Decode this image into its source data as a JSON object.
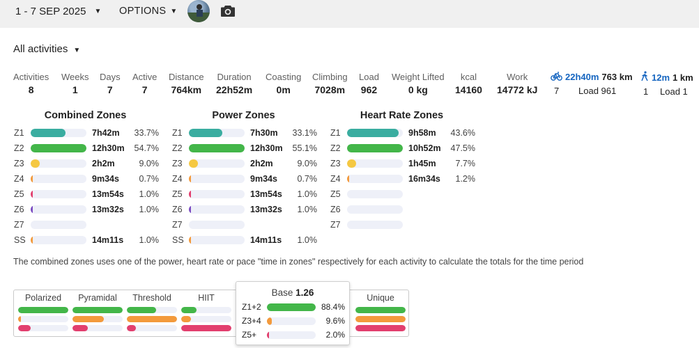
{
  "toolbar": {
    "date_range": "1 - 7 SEP 2025",
    "options_label": "OPTIONS",
    "dropdown_icon": "caret-down",
    "camera_icon": "camera"
  },
  "filter": {
    "label": "All activities"
  },
  "stats": [
    {
      "label": "Activities",
      "value": "8"
    },
    {
      "label": "Weeks",
      "value": "1"
    },
    {
      "label": "Days",
      "value": "7"
    },
    {
      "label": "Active",
      "value": "7"
    },
    {
      "label": "Distance",
      "value": "764km"
    },
    {
      "label": "Duration",
      "value": "22h52m"
    },
    {
      "label": "Coasting",
      "value": "0m"
    },
    {
      "label": "Climbing",
      "value": "7028m"
    },
    {
      "label": "Load",
      "value": "962"
    },
    {
      "label": "Weight Lifted",
      "value": "0 kg"
    },
    {
      "label": "kcal",
      "value": "14160"
    },
    {
      "label": "Work",
      "value": "14772 kJ"
    }
  ],
  "sports": [
    {
      "icon": "bike-icon",
      "duration": "22h40m",
      "distance": "763 km",
      "count": "7",
      "load": "Load 961"
    },
    {
      "icon": "walk-icon",
      "duration": "12m",
      "distance": "1 km",
      "count": "1",
      "load": "Load 1"
    }
  ],
  "zones": {
    "combined": {
      "title": "Combined Zones",
      "rows": [
        {
          "name": "Z1",
          "time": "7h42m",
          "pct": "33.7%",
          "fill": 0.62,
          "color": "#3aada0"
        },
        {
          "name": "Z2",
          "time": "12h30m",
          "pct": "54.7%",
          "fill": 1.0,
          "color": "#43b649"
        },
        {
          "name": "Z3",
          "time": "2h2m",
          "pct": "9.0%",
          "fill": 0.16,
          "color": "#f5c842"
        },
        {
          "name": "Z4",
          "time": "9m34s",
          "pct": "0.7%",
          "fill": 0.03,
          "color": "#f39a3c"
        },
        {
          "name": "Z5",
          "time": "13m54s",
          "pct": "1.0%",
          "fill": 0.03,
          "color": "#e23f6e"
        },
        {
          "name": "Z6",
          "time": "13m32s",
          "pct": "1.0%",
          "fill": 0.03,
          "color": "#7b4cc2"
        },
        {
          "name": "Z7",
          "time": "",
          "pct": "",
          "fill": 0,
          "color": "#555555"
        },
        {
          "name": "SS",
          "time": "14m11s",
          "pct": "1.0%",
          "fill": 0.03,
          "color": "#f39a3c"
        }
      ]
    },
    "power": {
      "title": "Power Zones",
      "rows": [
        {
          "name": "Z1",
          "time": "7h30m",
          "pct": "33.1%",
          "fill": 0.6,
          "color": "#3aada0"
        },
        {
          "name": "Z2",
          "time": "12h30m",
          "pct": "55.1%",
          "fill": 1.0,
          "color": "#43b649"
        },
        {
          "name": "Z3",
          "time": "2h2m",
          "pct": "9.0%",
          "fill": 0.16,
          "color": "#f5c842"
        },
        {
          "name": "Z4",
          "time": "9m34s",
          "pct": "0.7%",
          "fill": 0.03,
          "color": "#f39a3c"
        },
        {
          "name": "Z5",
          "time": "13m54s",
          "pct": "1.0%",
          "fill": 0.03,
          "color": "#e23f6e"
        },
        {
          "name": "Z6",
          "time": "13m32s",
          "pct": "1.0%",
          "fill": 0.03,
          "color": "#7b4cc2"
        },
        {
          "name": "Z7",
          "time": "",
          "pct": "",
          "fill": 0,
          "color": "#555555"
        },
        {
          "name": "SS",
          "time": "14m11s",
          "pct": "1.0%",
          "fill": 0.03,
          "color": "#f39a3c"
        }
      ]
    },
    "heart": {
      "title": "Heart Rate Zones",
      "rows": [
        {
          "name": "Z1",
          "time": "9h58m",
          "pct": "43.6%",
          "fill": 0.92,
          "color": "#3aada0"
        },
        {
          "name": "Z2",
          "time": "10h52m",
          "pct": "47.5%",
          "fill": 1.0,
          "color": "#43b649"
        },
        {
          "name": "Z3",
          "time": "1h45m",
          "pct": "7.7%",
          "fill": 0.16,
          "color": "#f5c842"
        },
        {
          "name": "Z4",
          "time": "16m34s",
          "pct": "1.2%",
          "fill": 0.03,
          "color": "#f39a3c"
        },
        {
          "name": "Z5",
          "time": "",
          "pct": "",
          "fill": 0,
          "color": "#e23f6e"
        },
        {
          "name": "Z6",
          "time": "",
          "pct": "",
          "fill": 0,
          "color": "#7b4cc2"
        },
        {
          "name": "Z7",
          "time": "",
          "pct": "",
          "fill": 0,
          "color": "#555555"
        }
      ]
    }
  },
  "note": "The combined zones uses one of the power, heart rate or pace \"time in zones\" respectively for each activity to calculate the totals for the time period",
  "distribution": {
    "columns": [
      {
        "title": "Polarized",
        "bars": [
          {
            "fill": 1.0,
            "color": "#43b649"
          },
          {
            "fill": 0.06,
            "color": "#f39a3c"
          },
          {
            "fill": 0.25,
            "color": "#e23f6e"
          }
        ]
      },
      {
        "title": "Pyramidal",
        "bars": [
          {
            "fill": 1.0,
            "color": "#43b649"
          },
          {
            "fill": 0.62,
            "color": "#f39a3c"
          },
          {
            "fill": 0.3,
            "color": "#e23f6e"
          }
        ]
      },
      {
        "title": "Threshold",
        "bars": [
          {
            "fill": 0.58,
            "color": "#43b649"
          },
          {
            "fill": 1.0,
            "color": "#f39a3c"
          },
          {
            "fill": 0.18,
            "color": "#e23f6e"
          }
        ]
      },
      {
        "title": "HIIT",
        "bars": [
          {
            "fill": 0.3,
            "color": "#43b649"
          },
          {
            "fill": 0.2,
            "color": "#f39a3c"
          },
          {
            "fill": 1.0,
            "color": "#e23f6e"
          }
        ]
      },
      {
        "title": "Unique",
        "bars": [
          {
            "fill": 1.0,
            "color": "#43b649"
          },
          {
            "fill": 1.0,
            "color": "#f39a3c"
          },
          {
            "fill": 1.0,
            "color": "#e23f6e"
          }
        ]
      }
    ]
  },
  "popup": {
    "title": "Base",
    "value": "1.26",
    "rows": [
      {
        "name": "Z1+2",
        "pct": "88.4%",
        "fill": 1.0,
        "color": "#43b649"
      },
      {
        "name": "Z3+4",
        "pct": "9.6%",
        "fill": 0.1,
        "color": "#f39a3c"
      },
      {
        "name": "Z5+",
        "pct": "2.0%",
        "fill": 0.02,
        "color": "#e23f6e"
      }
    ]
  }
}
